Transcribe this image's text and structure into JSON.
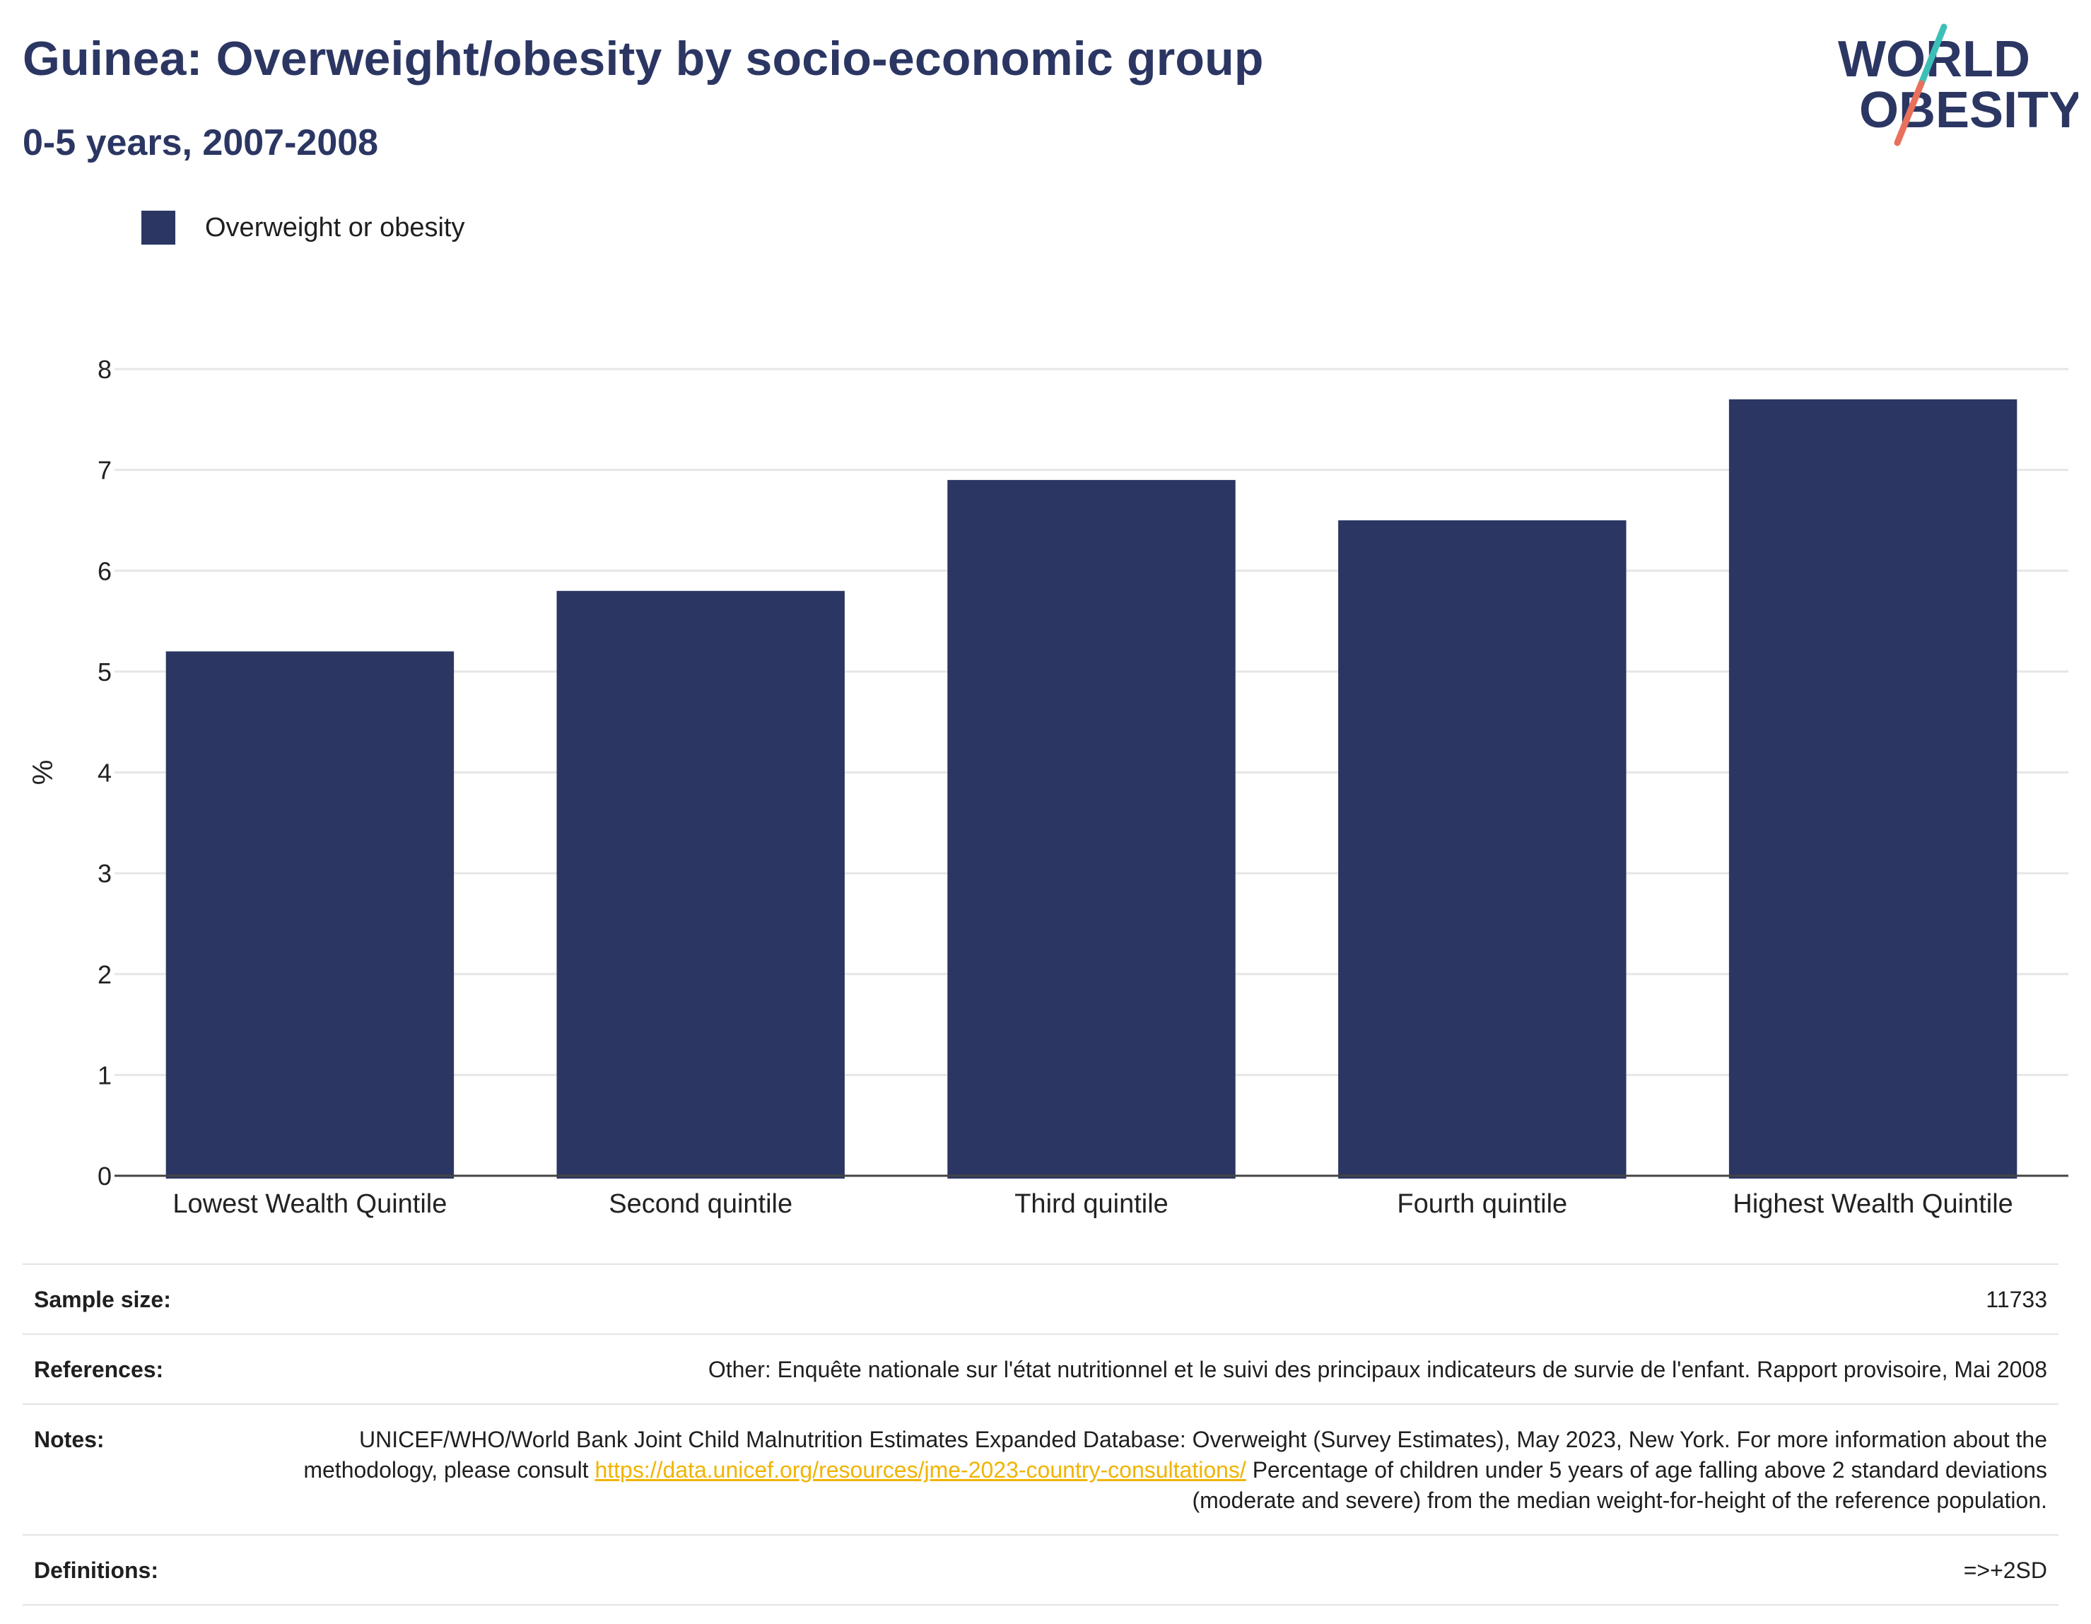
{
  "header": {
    "title": "Guinea: Overweight/obesity by socio-economic group",
    "subtitle": "0-5 years, 2007-2008"
  },
  "logo": {
    "line1": "WORLD",
    "line2": "OBESITY",
    "accent_teal": "#3dbfb8",
    "accent_coral": "#e8705d"
  },
  "legend": {
    "label": "Overweight or obesity",
    "color": "#2b3663"
  },
  "chart_data": {
    "type": "bar",
    "categories": [
      "Lowest Wealth Quintile",
      "Second quintile",
      "Third quintile",
      "Fourth quintile",
      "Highest Wealth Quintile"
    ],
    "series": [
      {
        "name": "Overweight or obesity",
        "values": [
          5.2,
          5.8,
          6.9,
          6.5,
          7.7
        ],
        "color": "#2b3663"
      }
    ],
    "ylabel": "%",
    "ylim": [
      0,
      8
    ],
    "yticks": [
      0,
      1,
      2,
      3,
      4,
      5,
      6,
      7,
      8
    ],
    "grid": true
  },
  "info": {
    "sample_size_label": "Sample size:",
    "sample_size_value": "11733",
    "references_label": "References:",
    "references_value": "Other: Enquête nationale sur l'état nutritionnel et le suivi des principaux indicateurs de survie de l'enfant. Rapport provisoire, Mai 2008",
    "notes_label": "Notes:",
    "notes_text_1": "UNICEF/WHO/World Bank Joint Child Malnutrition Estimates Expanded Database: Overweight (Survey Estimates), May 2023, New York. For more information about the methodology, please consult ",
    "notes_link": "https://data.unicef.org/resources/jme-2023-country-consultations/",
    "notes_text_2": "Percentage of children under 5 years of age falling above 2 standard deviations (moderate and severe) from the median weight-for-height of the reference population.",
    "definitions_label": "Definitions:",
    "definitions_value": "=>+2SD"
  }
}
